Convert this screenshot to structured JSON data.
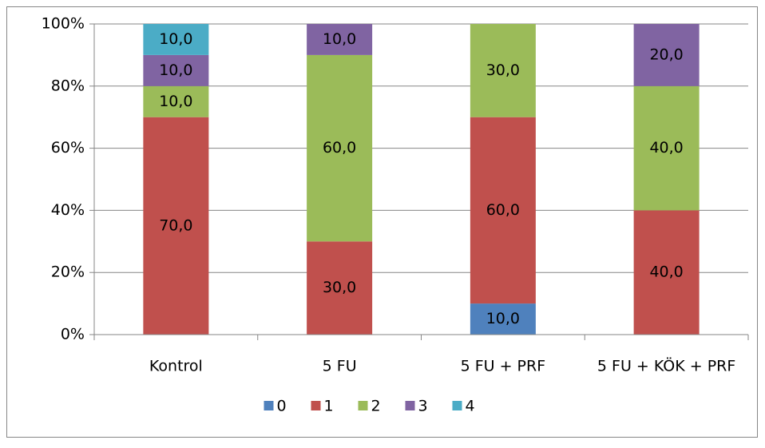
{
  "chart_data": {
    "type": "stacked_bar",
    "categories": [
      "Kontrol",
      "5 FU",
      "5 FU + PRF",
      "5 FU + KÖK + PRF"
    ],
    "series": [
      {
        "name": "0",
        "color": "#4f81bd",
        "values": [
          0,
          0,
          10,
          0
        ],
        "value_labels": [
          null,
          null,
          "10,0",
          null
        ]
      },
      {
        "name": "1",
        "color": "#c0504d",
        "values": [
          70,
          30,
          60,
          40
        ],
        "value_labels": [
          "70,0",
          "30,0",
          "60,0",
          "40,0"
        ]
      },
      {
        "name": "2",
        "color": "#9bbb59",
        "values": [
          10,
          60,
          30,
          40
        ],
        "value_labels": [
          "10,0",
          "60,0",
          "30,0",
          "40,0"
        ]
      },
      {
        "name": "3",
        "color": "#8064a2",
        "values": [
          10,
          10,
          0,
          20
        ],
        "value_labels": [
          "10,0",
          "10,0",
          null,
          "20,0"
        ]
      },
      {
        "name": "4",
        "color": "#4bacc6",
        "values": [
          10,
          0,
          0,
          0
        ],
        "value_labels": [
          "10,0",
          null,
          null,
          null
        ]
      }
    ],
    "ylim": [
      0,
      100
    ],
    "yticks": [
      {
        "value": 0,
        "label": "0%"
      },
      {
        "value": 20,
        "label": "20%"
      },
      {
        "value": 40,
        "label": "40%"
      },
      {
        "value": 60,
        "label": "60%"
      },
      {
        "value": 80,
        "label": "80%"
      },
      {
        "value": 100,
        "label": "100%"
      }
    ],
    "grid": true,
    "legend": "bottom"
  }
}
